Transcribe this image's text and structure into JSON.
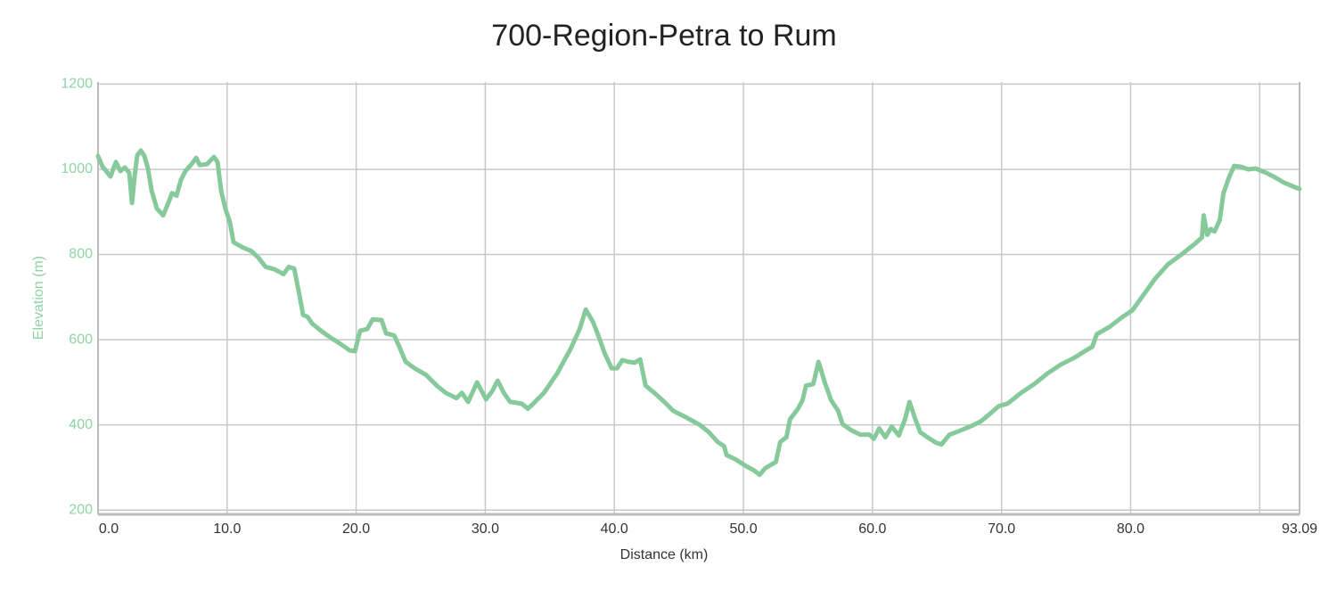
{
  "chart_data": {
    "type": "line",
    "title": "700-Region-Petra to Rum",
    "x_label": "Distance (km)",
    "y_label": "Elevation (m)",
    "color": "#86c99b",
    "grid": true,
    "xlim": [
      0,
      93.09
    ],
    "ylim": [
      190,
      1205
    ],
    "yticks": [
      200,
      400,
      600,
      800,
      1000,
      1200
    ],
    "xticks": [
      {
        "value": 0,
        "label": "0.0"
      },
      {
        "value": 10,
        "label": "10.0"
      },
      {
        "value": 20,
        "label": "20.0"
      },
      {
        "value": 30,
        "label": "30.0"
      },
      {
        "value": 40,
        "label": "40.0"
      },
      {
        "value": 50,
        "label": "50.0"
      },
      {
        "value": 60,
        "label": "60.0"
      },
      {
        "value": 70,
        "label": "70.0"
      },
      {
        "value": 80,
        "label": "80.0"
      },
      {
        "value": 90,
        "label": null
      },
      93.09
    ],
    "x": [
      0,
      0.35,
      0.97,
      1.38,
      1.73,
      2.07,
      2.42,
      2.63,
      2.83,
      3.04,
      3.32,
      3.59,
      3.87,
      4.15,
      4.56,
      5.04,
      5.39,
      5.73,
      6.08,
      6.42,
      6.77,
      7.18,
      7.6,
      7.88,
      8.43,
      8.98,
      9.26,
      9.53,
      9.88,
      10.22,
      10.5,
      11.19,
      11.88,
      12.44,
      12.99,
      13.68,
      14.37,
      14.78,
      15.2,
      15.61,
      15.89,
      16.23,
      16.58,
      17.27,
      17.96,
      18.79,
      19.48,
      19.9,
      20.3,
      20.86,
      21.28,
      21.97,
      22.31,
      22.94,
      23.35,
      23.83,
      24.53,
      25.42,
      26.25,
      26.94,
      27.77,
      28.19,
      28.67,
      29.36,
      30.06,
      30.54,
      30.96,
      31.44,
      31.93,
      32.82,
      33.3,
      33.85,
      34.54,
      35.58,
      36.62,
      37.31,
      37.79,
      38.34,
      38.83,
      39.24,
      39.79,
      40.21,
      40.62,
      41.1,
      41.59,
      42.0,
      42.42,
      43.11,
      43.87,
      44.56,
      45.6,
      46.63,
      47.32,
      48.01,
      48.5,
      48.7,
      49.4,
      50.16,
      50.78,
      51.26,
      51.68,
      52.51,
      52.86,
      53.33,
      53.61,
      54.23,
      54.58,
      54.85,
      55.41,
      55.82,
      56.3,
      56.79,
      57.34,
      57.68,
      58.38,
      59.07,
      59.76,
      60.1,
      60.52,
      61.0,
      61.49,
      62.04,
      62.52,
      62.87,
      63.28,
      63.7,
      64.25,
      64.94,
      65.35,
      65.97,
      66.67,
      67.56,
      68.39,
      69.22,
      69.78,
      70.47,
      71.5,
      72.54,
      73.57,
      74.61,
      75.65,
      76.55,
      77.03,
      77.38,
      78.41,
      79.31,
      80.14,
      80.97,
      81.87,
      82.9,
      83.94,
      84.97,
      85.53,
      85.66,
      85.94,
      86.22,
      86.5,
      86.91,
      87.19,
      87.6,
      88.02,
      88.57,
      89.12,
      89.67,
      90.5,
      91.19,
      91.88,
      92.57,
      93.09
    ],
    "values": [
      1031,
      1006,
      983,
      1017,
      996,
      1004,
      992,
      921,
      983,
      1033,
      1044,
      1031,
      1002,
      950,
      908,
      892,
      917,
      944,
      938,
      975,
      996,
      1010,
      1027,
      1010,
      1012,
      1029,
      1017,
      950,
      906,
      875,
      829,
      817,
      808,
      792,
      771,
      765,
      754,
      771,
      767,
      704,
      658,
      654,
      638,
      621,
      606,
      590,
      575,
      573,
      621,
      625,
      648,
      646,
      615,
      610,
      583,
      548,
      533,
      517,
      492,
      475,
      463,
      475,
      454,
      500,
      460,
      479,
      504,
      475,
      454,
      450,
      438,
      454,
      475,
      521,
      579,
      625,
      671,
      642,
      604,
      569,
      533,
      533,
      552,
      548,
      546,
      554,
      492,
      475,
      454,
      433,
      417,
      400,
      383,
      360,
      350,
      329,
      319,
      304,
      294,
      283,
      298,
      313,
      360,
      371,
      413,
      438,
      458,
      492,
      496,
      548,
      500,
      458,
      433,
      402,
      387,
      377,
      377,
      367,
      392,
      371,
      396,
      375,
      413,
      454,
      417,
      383,
      371,
      358,
      354,
      377,
      385,
      396,
      408,
      429,
      444,
      450,
      475,
      496,
      521,
      542,
      558,
      575,
      583,
      613,
      631,
      652,
      669,
      704,
      742,
      777,
      800,
      825,
      840,
      892,
      846,
      860,
      854,
      881,
      944,
      979,
      1008,
      1006,
      1000,
      1002,
      992,
      981,
      969,
      960,
      954
    ]
  }
}
